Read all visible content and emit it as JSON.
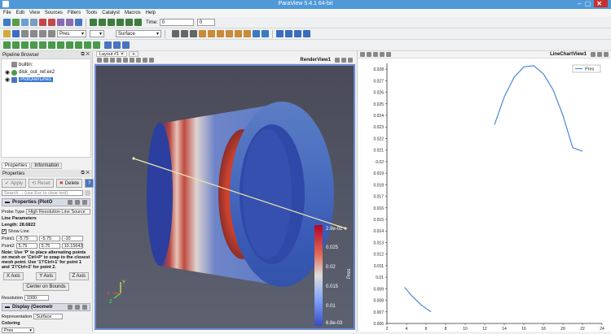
{
  "app": {
    "title": "ParaView 5.4.1 64-bit",
    "window_controls": [
      "–",
      "▢"
    ],
    "close_label": "✕"
  },
  "menu": [
    "File",
    "Edit",
    "View",
    "Sources",
    "Filters",
    "Tools",
    "Catalyst",
    "Macros",
    "Help"
  ],
  "toolbar": {
    "time_label": "Time:",
    "time_value": "0",
    "frame_value": "0",
    "color_array": "Pres",
    "representation": "Surface"
  },
  "pipeline": {
    "title": "Pipeline Browser",
    "items": [
      {
        "label": "builtin:"
      },
      {
        "label": "disk_out_ref.ex2"
      },
      {
        "label": "PlotOverLine1"
      }
    ]
  },
  "properties": {
    "tabs": [
      "Properties",
      "Information"
    ],
    "title": "Properties",
    "apply": "Apply",
    "reset": "Reset",
    "delete": "Delete",
    "help": "?",
    "search_placeholder": "Search ... (use Esc to clear text)",
    "section1": "Properties (PlotO",
    "probe_type_label": "Probe Type",
    "probe_type_value": "High Resolution Line Source",
    "line_params": "Line Parameters",
    "length": "Length: 28.6822",
    "show_line": "Show Line",
    "point1_label": "Point1",
    "point1": [
      "-5.75",
      "-5.75",
      "-10"
    ],
    "point2_label": "Point2",
    "point2": [
      "5.75",
      "5.75",
      "10.15643"
    ],
    "note": "Note: Use 'P' to place alternating points on mesh or 'Ctrl+P' to snap to the closest mesh point. Use '1'/'Ctrl+1' for point 1 and '2'/'Ctrl+2' for point 2.",
    "axis_buttons": [
      "X Axis",
      "Y Axis",
      "Z Axis"
    ],
    "center_button": "Center on Bounds",
    "resolution_label": "Resolution",
    "resolution_value": "1000",
    "section2": "Display (Geometr",
    "repr_label": "Representation",
    "repr_value": "Surface",
    "coloring": "Coloring",
    "coloring_value": "Pres"
  },
  "tabsbar": {
    "layout_tab": "Layout #1",
    "add_tab": "+"
  },
  "render": {
    "name": "RenderView1",
    "colorbar": {
      "labels": [
        "2.9e-02",
        "0.025",
        "0.02",
        "0.015",
        "0.01",
        "6.8e-03"
      ],
      "title": "Pres"
    },
    "axes": {
      "x": "X",
      "y": "Y",
      "z": "Z"
    }
  },
  "chart_view": {
    "name": "LineChartView1"
  },
  "chart_data": {
    "type": "line",
    "series": [
      {
        "name": "Pres",
        "color": "#4a8ad4",
        "segments": [
          [
            [
              3.8,
              0.00913
            ],
            [
              4.5,
              0.00842
            ],
            [
              5.5,
              0.0076
            ],
            [
              6.5,
              0.007
            ]
          ],
          [
            [
              13,
              0.0232
            ],
            [
              14,
              0.0256
            ],
            [
              15,
              0.0273
            ],
            [
              16,
              0.0282
            ],
            [
              17,
              0.0283
            ],
            [
              18,
              0.0276
            ],
            [
              19,
              0.0262
            ],
            [
              20,
              0.024
            ],
            [
              21,
              0.0212
            ],
            [
              22,
              0.0209
            ]
          ]
        ]
      }
    ],
    "x_ticks": [
      "2",
      "4",
      "6",
      "8",
      "10",
      "12",
      "14",
      "16",
      "18",
      "20",
      "22",
      "24"
    ],
    "y_ticks": [
      "0.006",
      "0.007",
      "0.008",
      "0.009",
      "0.01",
      "0.011",
      "0.012",
      "0.013",
      "0.014",
      "0.015",
      "0.016",
      "0.017",
      "0.018",
      "0.019",
      "0.02",
      "0.021",
      "0.022",
      "0.023",
      "0.024",
      "0.025",
      "0.026",
      "0.027",
      "0.028"
    ],
    "xlim": [
      2,
      24
    ],
    "ylim": [
      0.006,
      0.0285
    ],
    "legend": "top-right"
  }
}
